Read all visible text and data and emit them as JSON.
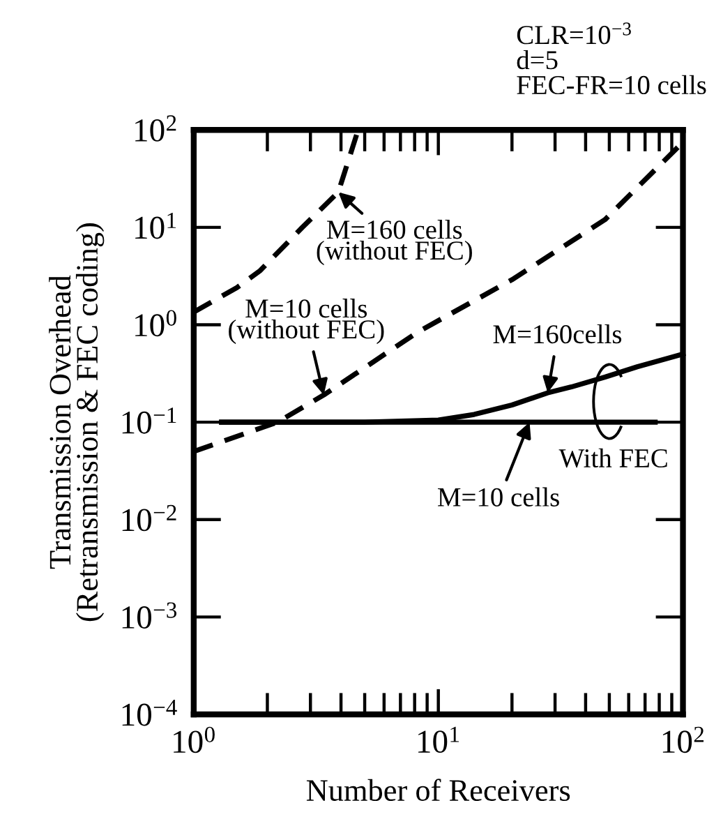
{
  "chart_data": {
    "type": "line",
    "xlabel": "Number of Receivers",
    "ylabel": "Transmission Overhead\n(Retransmission & FEC coding)",
    "log": "xy",
    "grid": false,
    "xlim": [
      1,
      100
    ],
    "xticks": [
      {
        "value": 1,
        "label": "10$^{0}$"
      },
      {
        "value": 10,
        "label": "10$^{1}$"
      },
      {
        "value": 100,
        "label": "10$^{2}$"
      }
    ],
    "ylim": [
      0.0001,
      100
    ],
    "yticks": [
      {
        "value": 0.0001,
        "label": "10$^{−4}$"
      },
      {
        "value": 0.001,
        "label": "10$^{−3}$"
      },
      {
        "value": 0.01,
        "label": "10$^{−2}$"
      },
      {
        "value": 0.1,
        "label": "10$^{−1}$"
      },
      {
        "value": 1,
        "label": "10$^{0}$"
      },
      {
        "value": 10,
        "label": "10$^{1}$"
      },
      {
        "value": 100,
        "label": "10$^{2}$"
      }
    ],
    "series": [
      {
        "color": "#000000",
        "line_style": "dashed",
        "x": [
          1,
          1.5,
          1.87,
          2.78,
          3.9,
          4.7
        ],
        "values": [
          1.35,
          2.4,
          3.6,
          10,
          23,
          100
        ]
      },
      {
        "color": "#000000",
        "line_style": "dashed",
        "x": [
          1,
          2.2,
          3.4,
          8.3,
          20,
          48,
          100
        ],
        "values": [
          0.05,
          0.1,
          0.19,
          0.85,
          2.9,
          12,
          75
        ]
      },
      {
        "color": "#000000",
        "line_style": "solid",
        "x": [
          1.3,
          5,
          10,
          14,
          20,
          28,
          35,
          48,
          65,
          100
        ],
        "values": [
          0.1,
          0.1,
          0.105,
          0.12,
          0.15,
          0.2,
          0.23,
          0.29,
          0.37,
          0.5
        ]
      },
      {
        "color": "#000000",
        "line_style": "solid",
        "x": [
          1.3,
          77
        ],
        "values": [
          0.1,
          0.1
        ]
      }
    ],
    "annotations": [
      {
        "text": "M=160 cells\n(without FEC)",
        "x": 3.9,
        "y": 23
      },
      {
        "text": "M=10 cells\n(without FEC)",
        "x": 3.4,
        "y": 0.19
      },
      {
        "text": "M=160cells",
        "x": 28,
        "y": 0.2
      },
      {
        "text": "M=10 cells",
        "x": 23.6,
        "y": 0.1
      },
      "With FEC",
      "CLR=10$^{−3}$",
      "d=5",
      "FEC-FR=10 cells"
    ]
  }
}
